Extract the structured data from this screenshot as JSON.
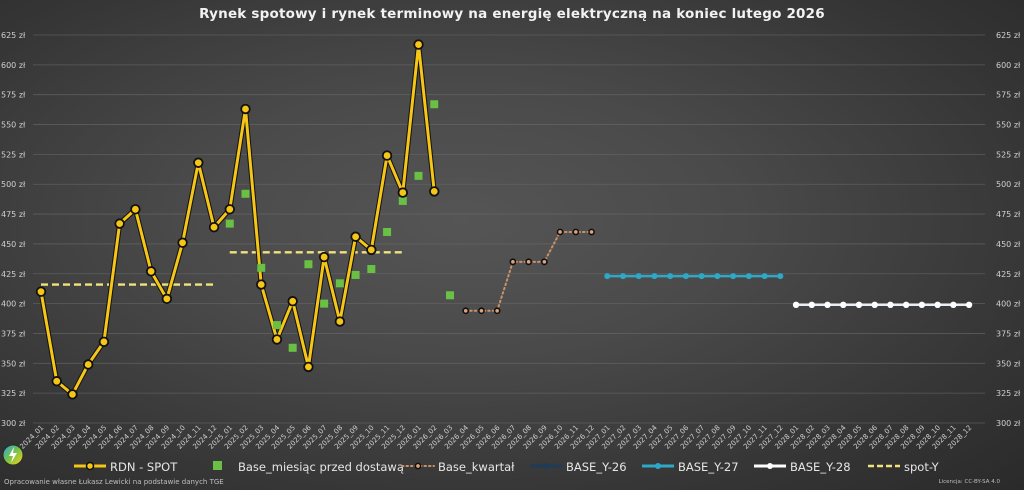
{
  "title": "Rynek spotowy i rynek terminowy na energię elektryczną na koniec lutego 2026",
  "footer": {
    "source": "Opracowanie własne Łukasz Lewicki na podstawie danych TGE",
    "license": "Licencja: CC-BY-SA 4.0"
  },
  "colors": {
    "rdn_spot": "#f5c518",
    "base_miesiac": "#6abf45",
    "base_kwartal": "#c8916a",
    "base_y26": "#1f3b57",
    "base_y27": "#2ea8c6",
    "base_y28": "#ffffff",
    "spot_y": "#f2e27a",
    "gridline": "#6a6a6a"
  },
  "legend": [
    {
      "key": "rdn_spot",
      "label": "RDN - SPOT"
    },
    {
      "key": "base_miesiac",
      "label": "Base_miesiąc przed dostawą"
    },
    {
      "key": "base_kwartal",
      "label": "Base_kwartał"
    },
    {
      "key": "base_y26",
      "label": "BASE_Y-26"
    },
    {
      "key": "base_y27",
      "label": "BASE_Y-27"
    },
    {
      "key": "base_y28",
      "label": "BASE_Y-28"
    },
    {
      "key": "spot_y",
      "label": "spot-Y"
    }
  ],
  "chart_data": {
    "type": "line",
    "title": "Rynek spotowy i rynek terminowy na energię elektryczną na koniec lutego 2026",
    "xlabel": "",
    "ylabel": "",
    "ylim": [
      300,
      625
    ],
    "y_ticks": [
      300,
      325,
      350,
      375,
      400,
      425,
      450,
      475,
      500,
      525,
      550,
      575,
      600,
      625
    ],
    "y_tick_format": "{v} zł",
    "y_axis_both_sides": true,
    "grid": "horizontal",
    "legend_position": "bottom",
    "categories": [
      "2024_01",
      "2024_02",
      "2024_03",
      "2024_04",
      "2024_05",
      "2024_06",
      "2024_07",
      "2024_08",
      "2024_09",
      "2024_10",
      "2024_11",
      "2024_12",
      "2025_01",
      "2025_02",
      "2025_03",
      "2025_04",
      "2025_05",
      "2025_06",
      "2025_07",
      "2025_08",
      "2025_09",
      "2025_10",
      "2025_11",
      "2025_12",
      "2026_01",
      "2026_02",
      "2026_03",
      "2026_04",
      "2026_05",
      "2026_06",
      "2026_07",
      "2026_08",
      "2026_09",
      "2026_10",
      "2026_11",
      "2026_12",
      "2027_01",
      "2027_02",
      "2027_03",
      "2027_04",
      "2027_05",
      "2027_06",
      "2027_07",
      "2027_08",
      "2027_09",
      "2027_10",
      "2027_11",
      "2027_12",
      "2028_01",
      "2028_02",
      "2028_03",
      "2028_04",
      "2028_05",
      "2028_06",
      "2028_07",
      "2028_08",
      "2028_09",
      "2028_10",
      "2028_11",
      "2028_12"
    ],
    "series": [
      {
        "name": "RDN - SPOT",
        "style": "line-marker",
        "values": [
          410,
          335,
          324,
          349,
          368,
          467,
          479,
          427,
          404,
          451,
          518,
          464,
          479,
          563,
          416,
          370,
          402,
          347,
          439,
          385,
          456,
          445,
          524,
          493,
          617,
          494,
          null,
          null,
          null,
          null,
          null,
          null,
          null,
          null,
          null,
          null,
          null,
          null,
          null,
          null,
          null,
          null,
          null,
          null,
          null,
          null,
          null,
          null,
          null,
          null,
          null,
          null,
          null,
          null,
          null,
          null,
          null,
          null,
          null,
          null
        ]
      },
      {
        "name": "Base_miesiąc przed dostawą",
        "style": "square-marker",
        "values": [
          null,
          null,
          null,
          null,
          null,
          null,
          null,
          null,
          null,
          null,
          null,
          null,
          467,
          492,
          430,
          382,
          363,
          433,
          400,
          417,
          424,
          429,
          460,
          486,
          507,
          567,
          407,
          null,
          null,
          null,
          null,
          null,
          null,
          null,
          null,
          null,
          null,
          null,
          null,
          null,
          null,
          null,
          null,
          null,
          null,
          null,
          null,
          null,
          null,
          null,
          null,
          null,
          null,
          null,
          null,
          null,
          null,
          null,
          null,
          null
        ]
      },
      {
        "name": "Base_kwartał",
        "style": "dotted-marker",
        "values": [
          null,
          null,
          null,
          null,
          null,
          null,
          null,
          null,
          null,
          null,
          null,
          null,
          null,
          null,
          null,
          null,
          null,
          null,
          null,
          null,
          null,
          null,
          null,
          null,
          null,
          null,
          null,
          394,
          394,
          394,
          435,
          435,
          435,
          460,
          460,
          460,
          null,
          null,
          null,
          null,
          null,
          null,
          null,
          null,
          null,
          null,
          null,
          null,
          null,
          null,
          null,
          null,
          null,
          null,
          null,
          null,
          null,
          null,
          null,
          null
        ]
      },
      {
        "name": "BASE_Y-26",
        "style": "line-marker",
        "values": []
      },
      {
        "name": "BASE_Y-27",
        "style": "line-marker",
        "values": [
          null,
          null,
          null,
          null,
          null,
          null,
          null,
          null,
          null,
          null,
          null,
          null,
          null,
          null,
          null,
          null,
          null,
          null,
          null,
          null,
          null,
          null,
          null,
          null,
          null,
          null,
          null,
          null,
          null,
          null,
          null,
          null,
          null,
          null,
          null,
          null,
          423,
          423,
          423,
          423,
          423,
          423,
          423,
          423,
          423,
          423,
          423,
          423,
          null,
          null,
          null,
          null,
          null,
          null,
          null,
          null,
          null,
          null,
          null,
          null
        ]
      },
      {
        "name": "BASE_Y-28",
        "style": "line-marker",
        "values": [
          null,
          null,
          null,
          null,
          null,
          null,
          null,
          null,
          null,
          null,
          null,
          null,
          null,
          null,
          null,
          null,
          null,
          null,
          null,
          null,
          null,
          null,
          null,
          null,
          null,
          null,
          null,
          null,
          null,
          null,
          null,
          null,
          null,
          null,
          null,
          null,
          null,
          null,
          null,
          null,
          null,
          null,
          null,
          null,
          null,
          null,
          null,
          null,
          399,
          399,
          399,
          399,
          399,
          399,
          399,
          399,
          399,
          399,
          399,
          399
        ]
      },
      {
        "name": "spot-Y",
        "style": "dashed",
        "values": [
          416,
          416,
          416,
          416,
          416,
          416,
          416,
          416,
          416,
          416,
          416,
          416,
          443,
          443,
          443,
          443,
          443,
          443,
          443,
          443,
          443,
          443,
          443,
          443,
          null,
          null,
          null,
          null,
          null,
          null,
          null,
          null,
          null,
          null,
          null,
          null,
          null,
          null,
          null,
          null,
          null,
          null,
          null,
          null,
          null,
          null,
          null,
          null,
          null,
          null,
          null,
          null,
          null,
          null,
          null,
          null,
          null,
          null,
          null,
          null
        ]
      }
    ]
  }
}
